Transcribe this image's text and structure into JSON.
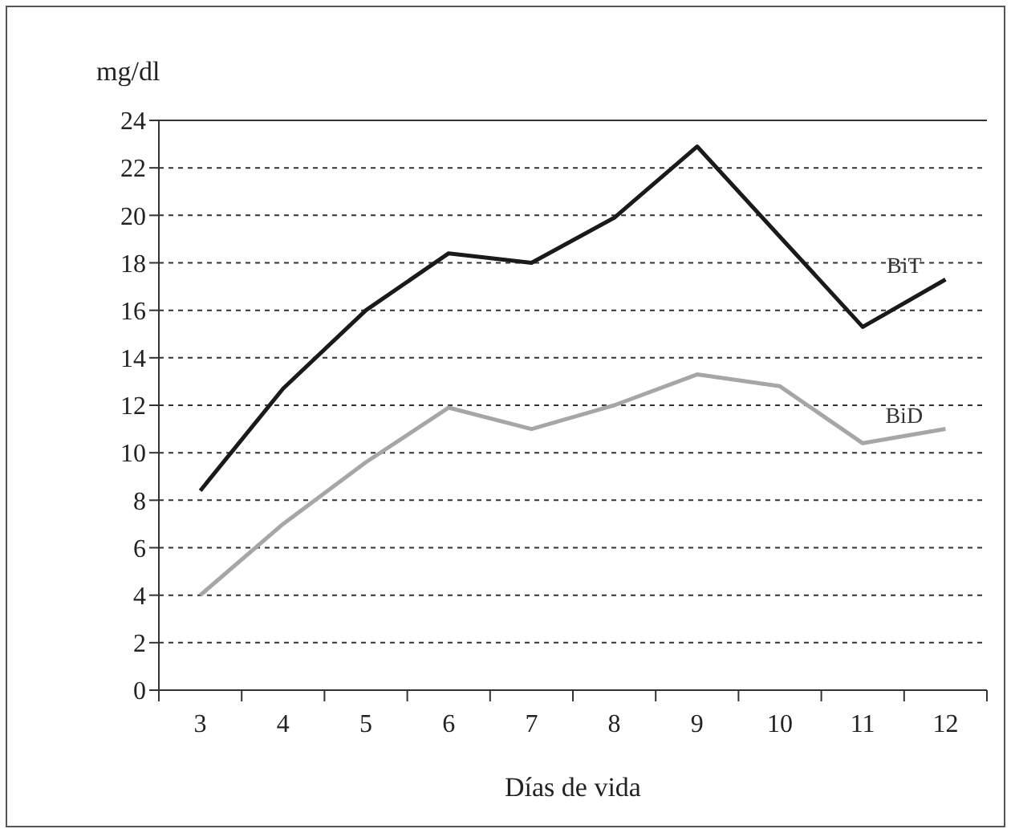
{
  "chart_data": {
    "type": "line",
    "ylabel": "mg/dl",
    "xlabel": "Días de vida",
    "categories": [
      "3",
      "4",
      "5",
      "6",
      "7",
      "8",
      "9",
      "10",
      "11",
      "12"
    ],
    "series": [
      {
        "name": "BiT",
        "color": "#1a1a1a",
        "values": [
          8.4,
          12.7,
          16.0,
          18.4,
          18.0,
          19.9,
          22.9,
          19.1,
          15.3,
          17.3
        ]
      },
      {
        "name": "BiD",
        "color": "#a6a6a6",
        "values": [
          4.0,
          7.0,
          9.6,
          11.9,
          11.0,
          12.0,
          13.3,
          12.8,
          10.4,
          11.0
        ]
      }
    ],
    "ylim": [
      0,
      24
    ],
    "yticks": [
      0,
      2,
      4,
      6,
      8,
      10,
      12,
      14,
      16,
      18,
      20,
      22,
      24
    ],
    "grid": "y",
    "legend": false,
    "marker": "none",
    "line_style": "solid"
  }
}
